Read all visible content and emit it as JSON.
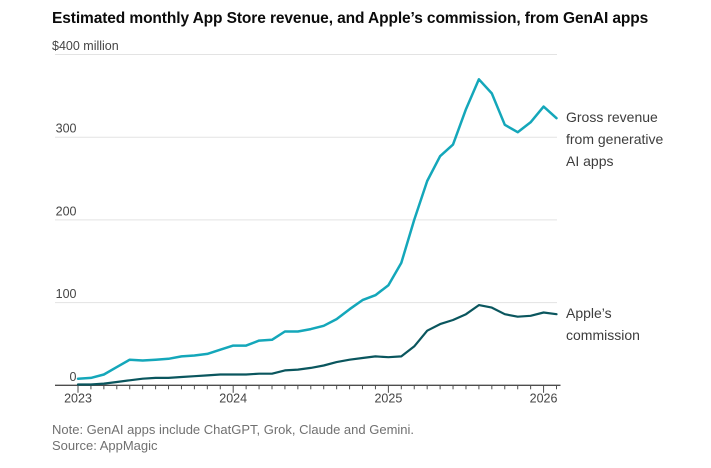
{
  "header": {
    "title": "Estimated monthly App Store revenue, and Apple’s commission, from GenAI apps"
  },
  "footer": {
    "note": "Note: GenAI apps include ChatGPT, Grok, Claude and Gemini.",
    "source": "Source: AppMagic"
  },
  "colors": {
    "gross": "#14a7ba",
    "commission": "#0a565e",
    "grid": "#e3e3e3",
    "axis": "#4d4d4d"
  },
  "chart_data": {
    "type": "line",
    "title": "Estimated monthly App Store revenue, and Apple’s commission, from GenAI apps",
    "y_unit": "$ million",
    "ylim": [
      0,
      400
    ],
    "grid": "horizontal",
    "legend_position": "right-annotations",
    "y_ticks": [
      {
        "value": 0,
        "label": "0"
      },
      {
        "value": 100,
        "label": "100"
      },
      {
        "value": 200,
        "label": "200"
      },
      {
        "value": 300,
        "label": "300"
      },
      {
        "value": 400,
        "label": "$400 million",
        "align": "left"
      }
    ],
    "x_tick_labels": [
      "2023",
      "2024",
      "2025",
      "2026"
    ],
    "x": [
      "2023-01",
      "2023-02",
      "2023-03",
      "2023-04",
      "2023-05",
      "2023-06",
      "2023-07",
      "2023-08",
      "2023-09",
      "2023-10",
      "2023-11",
      "2023-12",
      "2024-01",
      "2024-02",
      "2024-03",
      "2024-04",
      "2024-05",
      "2024-06",
      "2024-07",
      "2024-08",
      "2024-09",
      "2024-10",
      "2024-11",
      "2024-12",
      "2025-01",
      "2025-02",
      "2025-03",
      "2025-04",
      "2025-05",
      "2025-06",
      "2025-07",
      "2025-08",
      "2025-09",
      "2025-10",
      "2025-11",
      "2025-12",
      "2026-01",
      "2026-02"
    ],
    "series": [
      {
        "name": "Gross revenue from generative AI apps",
        "label_lines": [
          "Gross revenue",
          "from generative",
          "AI apps"
        ],
        "color": "#14a7ba",
        "values": [
          8,
          9,
          13,
          22,
          31,
          30,
          31,
          32,
          35,
          36,
          38,
          43,
          48,
          48,
          54,
          55,
          65,
          65,
          68,
          72,
          80,
          92,
          103,
          109,
          121,
          148,
          200,
          247,
          277,
          291,
          334,
          370,
          353,
          315,
          306,
          318,
          337,
          323
        ]
      },
      {
        "name": "Apple’s commission",
        "label_lines": [
          "Apple’s",
          "commission"
        ],
        "color": "#0a565e",
        "values": [
          1,
          1,
          2,
          4,
          6,
          8,
          9,
          9,
          10,
          11,
          12,
          13,
          13,
          13,
          14,
          14,
          18,
          19,
          21,
          24,
          28,
          31,
          33,
          35,
          34,
          35,
          47,
          66,
          74,
          79,
          86,
          97,
          94,
          86,
          83,
          84,
          88,
          86
        ]
      }
    ]
  }
}
